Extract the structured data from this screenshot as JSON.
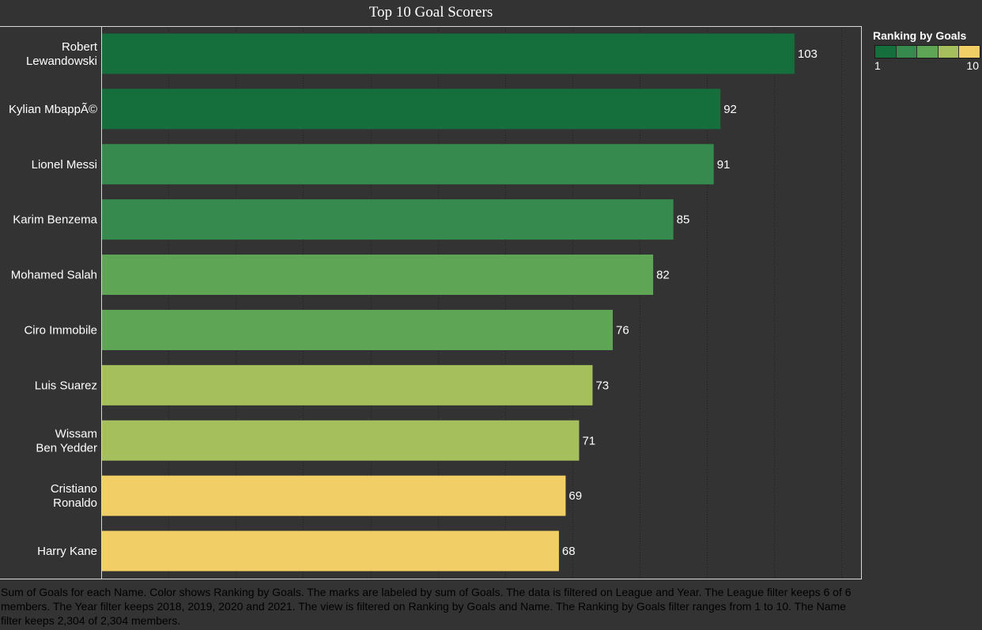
{
  "chart_data": {
    "type": "bar",
    "orientation": "horizontal",
    "title": "Top 10 Goal Scorers",
    "categories": [
      "Robert Lewandowski",
      "Kylian MbappÃ©",
      "Lionel Messi",
      "Karim Benzema",
      "Mohamed Salah",
      "Ciro Immobile",
      "Luis Suarez",
      "Wissam Ben Yedder",
      "Cristiano Ronaldo",
      "Harry Kane"
    ],
    "values": [
      103,
      92,
      91,
      85,
      82,
      76,
      73,
      71,
      69,
      68
    ],
    "colors": [
      "#156f3c",
      "#156f3c",
      "#368a4e",
      "#368a4e",
      "#5ea656",
      "#5ea656",
      "#a5bf5c",
      "#a5bf5c",
      "#f2cf66",
      "#f2cf66"
    ],
    "xlim": [
      0,
      113
    ],
    "grid": true,
    "data_labels": true,
    "legend": {
      "title": "Ranking by Goals",
      "min_label": "1",
      "max_label": "10",
      "colors": [
        "#156f3c",
        "#368a4e",
        "#5ea656",
        "#a5bf5c",
        "#f2cf66"
      ],
      "placement": "top-right"
    }
  },
  "caption": "Sum of Goals for each Name.  Color shows Ranking by Goals.  The marks are labeled by sum of Goals. The data is filtered on League and Year. The League filter keeps 6 of 6 members. The Year filter keeps 2018, 2019, 2020 and 2021. The view is filtered on Ranking by Goals and Name. The Ranking by Goals filter ranges from 1 to 10. The Name filter keeps 2,304 of 2,304 members."
}
